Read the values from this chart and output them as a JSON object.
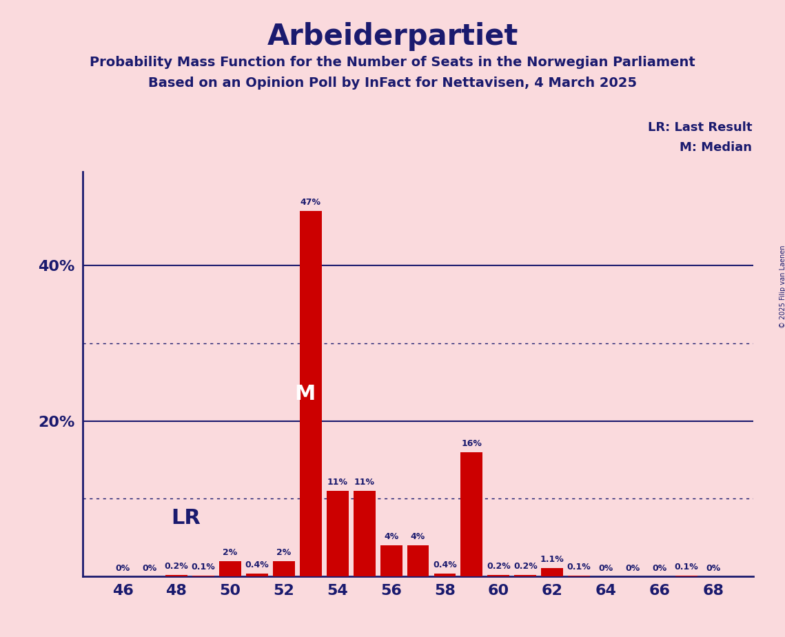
{
  "title": "Arbeiderpartiet",
  "subtitle1": "Probability Mass Function for the Number of Seats in the Norwegian Parliament",
  "subtitle2": "Based on an Opinion Poll by InFact for Nettavisen, 4 March 2025",
  "copyright": "© 2025 Filip van Laenen",
  "seats": [
    46,
    47,
    48,
    49,
    50,
    51,
    52,
    53,
    54,
    55,
    56,
    57,
    58,
    59,
    60,
    61,
    62,
    63,
    64,
    65,
    66,
    67,
    68
  ],
  "probabilities": [
    0.0,
    0.0,
    0.2,
    0.1,
    2.0,
    0.4,
    2.0,
    47.0,
    11.0,
    11.0,
    4.0,
    4.0,
    0.4,
    16.0,
    0.2,
    0.2,
    1.1,
    0.1,
    0.0,
    0.0,
    0.0,
    0.1,
    0.0
  ],
  "labels": [
    "0%",
    "0%",
    "0.2%",
    "0.1%",
    "2%",
    "0.4%",
    "2%",
    "47%",
    "11%",
    "11%",
    "4%",
    "4%",
    "0.4%",
    "16%",
    "0.2%",
    "0.2%",
    "1.1%",
    "0.1%",
    "0%",
    "0%",
    "0%",
    "0.1%",
    "0%"
  ],
  "bar_color": "#cc0000",
  "background_color": "#fadadd",
  "text_color": "#1a1a6e",
  "median_seat": 53,
  "last_result_seat": 48,
  "xlim": [
    44.5,
    69.5
  ],
  "ylim": [
    0,
    52
  ],
  "solid_yticks": [
    20,
    40
  ],
  "dotted_yticks": [
    10,
    30
  ],
  "xticks": [
    46,
    48,
    50,
    52,
    54,
    56,
    58,
    60,
    62,
    64,
    66,
    68
  ],
  "lr_x": 47.8,
  "lr_y": 7.5
}
